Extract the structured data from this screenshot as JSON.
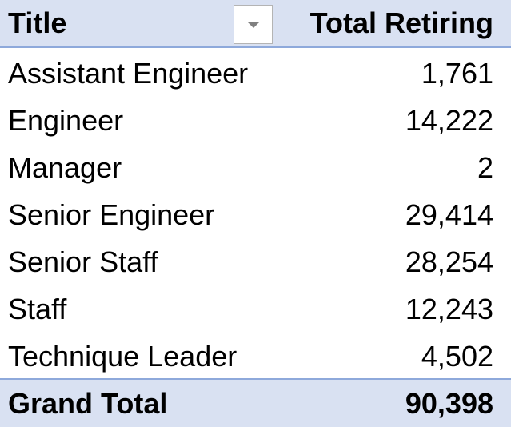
{
  "header": {
    "title_label": "Title",
    "value_label": "Total Retiring",
    "filter_icon": "dropdown-arrow-icon"
  },
  "rows": [
    {
      "title": "Assistant Engineer",
      "total": "1,761"
    },
    {
      "title": "Engineer",
      "total": "14,222"
    },
    {
      "title": "Manager",
      "total": "2"
    },
    {
      "title": "Senior Engineer",
      "total": "29,414"
    },
    {
      "title": "Senior Staff",
      "total": "28,254"
    },
    {
      "title": "Staff",
      "total": "12,243"
    },
    {
      "title": "Technique Leader",
      "total": "4,502"
    }
  ],
  "grand_total": {
    "label": "Grand Total",
    "value": "90,398"
  },
  "colors": {
    "header_bg": "#d9e1f2",
    "border": "#8ea9db"
  }
}
